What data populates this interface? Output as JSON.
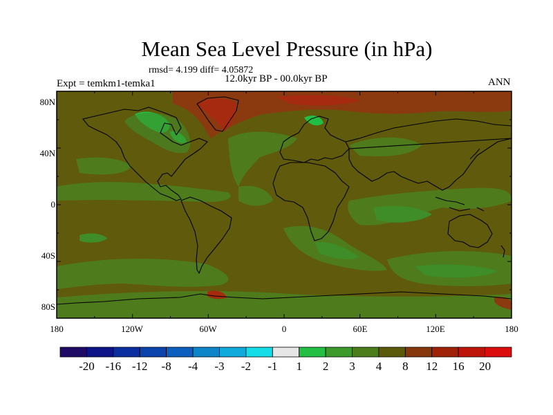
{
  "title": "Mean Sea Level Pressure (in hPa)",
  "stats_text": "rmsd= 4.199 diff= 4.05872",
  "experiment_text": "Expt = temkm1-temka1",
  "period_text": "12.0kyr BP - 00.0kyr BP",
  "season_text": "ANN",
  "latitude_labels": [
    "80N",
    "40N",
    "0",
    "40S",
    "80S"
  ],
  "longitude_labels": [
    "180",
    "120W",
    "60W",
    "0",
    "60E",
    "120E",
    "180"
  ],
  "colorbar": {
    "labels": [
      "-20",
      "-16",
      "-12",
      "-8",
      "-4",
      "-3",
      "-2",
      "-1",
      "1",
      "2",
      "3",
      "4",
      "8",
      "12",
      "16",
      "20"
    ],
    "colors": [
      "#1f0a66",
      "#0c1488",
      "#0a2d9f",
      "#0c44ad",
      "#0d5fbf",
      "#0c86c9",
      "#10aadd",
      "#15dde8",
      "#e6e6e6",
      "#22bf44",
      "#3c9a2a",
      "#4b7d1b",
      "#5b5a0a",
      "#87370c",
      "#9e2108",
      "#bd150a",
      "#db0d0d"
    ]
  },
  "map_colors": {
    "background": "#605a0d",
    "light_green": "#4e7b1c",
    "green": "#3f8d28",
    "bright_green": "#21be45",
    "brown_red": "#8b3a10",
    "red": "#a52a10"
  }
}
